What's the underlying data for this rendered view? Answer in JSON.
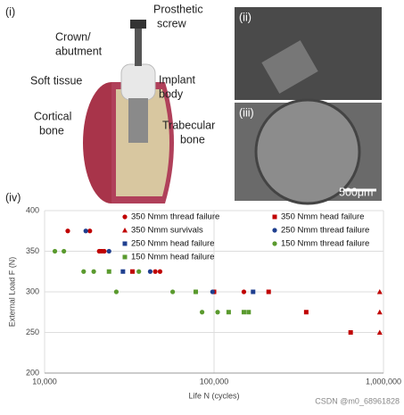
{
  "figure": {
    "panel_i": "(i)",
    "panel_ii": "(ii)",
    "panel_iii": "(iii)",
    "panel_iv": "(iv)",
    "labels": {
      "screw": [
        "Prosthetic",
        "screw"
      ],
      "crown": [
        "Crown/",
        "abutment"
      ],
      "soft": [
        "Soft tissue"
      ],
      "implant": [
        "Implant",
        "body"
      ],
      "cortical": [
        "Cortical",
        "bone"
      ],
      "trabecular": [
        "Trabecular",
        "bone"
      ]
    },
    "scale_bar": "500μm",
    "watermark": "CSDN @m0_68961828"
  },
  "chart_data": {
    "type": "scatter",
    "xlabel": "Life N (cycles)",
    "ylabel": "External Load F (N)",
    "log_x": true,
    "xlim": [
      10000,
      1000000
    ],
    "xticks": [
      {
        "value": 10000,
        "label": "10,000"
      },
      {
        "value": 100000,
        "label": "100,000"
      },
      {
        "value": 1000000,
        "label": "1,000,000"
      }
    ],
    "ylim": [
      200,
      400
    ],
    "yticks": [
      200,
      250,
      300,
      350,
      400
    ],
    "grid": true,
    "series": [
      {
        "name": "350 Nmm thread failure",
        "color": "#c00000",
        "marker": "circle",
        "x": [
          13700,
          18500,
          21000,
          22500,
          45000,
          48000,
          100000,
          150000
        ],
        "values": [
          375,
          375,
          350,
          350,
          325,
          325,
          300,
          300
        ]
      },
      {
        "name": "350 Nmm head failure",
        "color": "#c00000",
        "marker": "square",
        "x": [
          21500,
          33000,
          100000,
          210000,
          350000,
          640000
        ],
        "values": [
          350,
          325,
          300,
          300,
          275,
          250
        ]
      },
      {
        "name": "350 Nmm survivals",
        "color": "#c00000",
        "marker": "triangle",
        "x": [
          950000,
          950000,
          950000
        ],
        "values": [
          300,
          275,
          250
        ]
      },
      {
        "name": "250 Nmm thread failure",
        "color": "#1f3f8f",
        "marker": "circle",
        "x": [
          17500,
          24000,
          42000,
          98000
        ],
        "values": [
          375,
          350,
          325,
          300
        ]
      },
      {
        "name": "250 Nmm head failure",
        "color": "#1f3f8f",
        "marker": "square",
        "x": [
          29000,
          170000
        ],
        "values": [
          325,
          300
        ]
      },
      {
        "name": "150 Nmm thread failure",
        "color": "#5a9a2e",
        "marker": "circle",
        "x": [
          11500,
          13000,
          17000,
          19500,
          26500,
          36000,
          57000,
          78000,
          85000,
          105000
        ],
        "values": [
          350,
          350,
          325,
          325,
          300,
          325,
          300,
          300,
          275,
          275
        ]
      },
      {
        "name": "150 Nmm head failure",
        "color": "#5a9a2e",
        "marker": "square",
        "x": [
          24000,
          78000,
          122000,
          150000,
          160000
        ],
        "values": [
          325,
          300,
          275,
          275,
          275
        ]
      }
    ]
  }
}
